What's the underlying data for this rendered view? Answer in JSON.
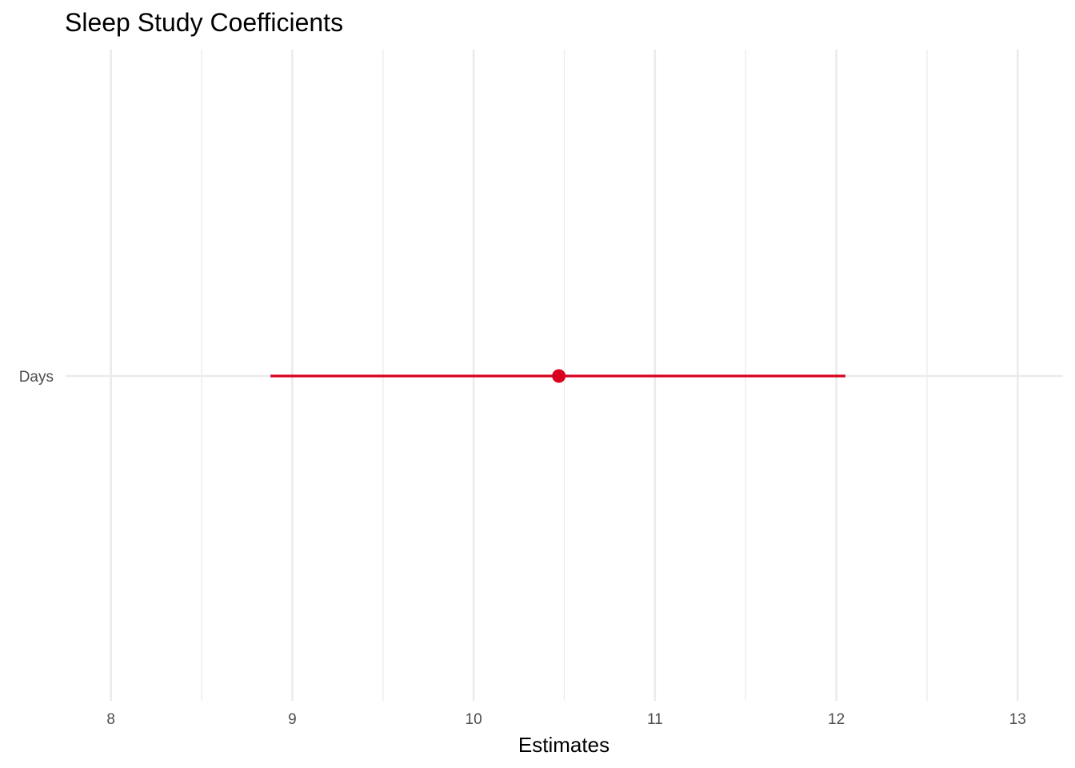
{
  "chart_data": {
    "type": "scatter",
    "subtype": "coefficient-plot",
    "title": "Sleep Study Coefficients",
    "xlabel": "Estimates",
    "ylabel": "",
    "xlim": [
      7.75,
      13.25
    ],
    "x_ticks": [
      8,
      9,
      10,
      11,
      12,
      13
    ],
    "x_tick_labels": [
      "8",
      "9",
      "10",
      "11",
      "12",
      "13"
    ],
    "x_minor_ticks": [
      8.5,
      9.5,
      10.5,
      11.5,
      12.5
    ],
    "grid": true,
    "legend": "none",
    "color": "#d7001f",
    "terms": [
      {
        "label": "Days",
        "estimate": 10.47,
        "ci_low": 8.88,
        "ci_high": 12.05
      }
    ]
  }
}
